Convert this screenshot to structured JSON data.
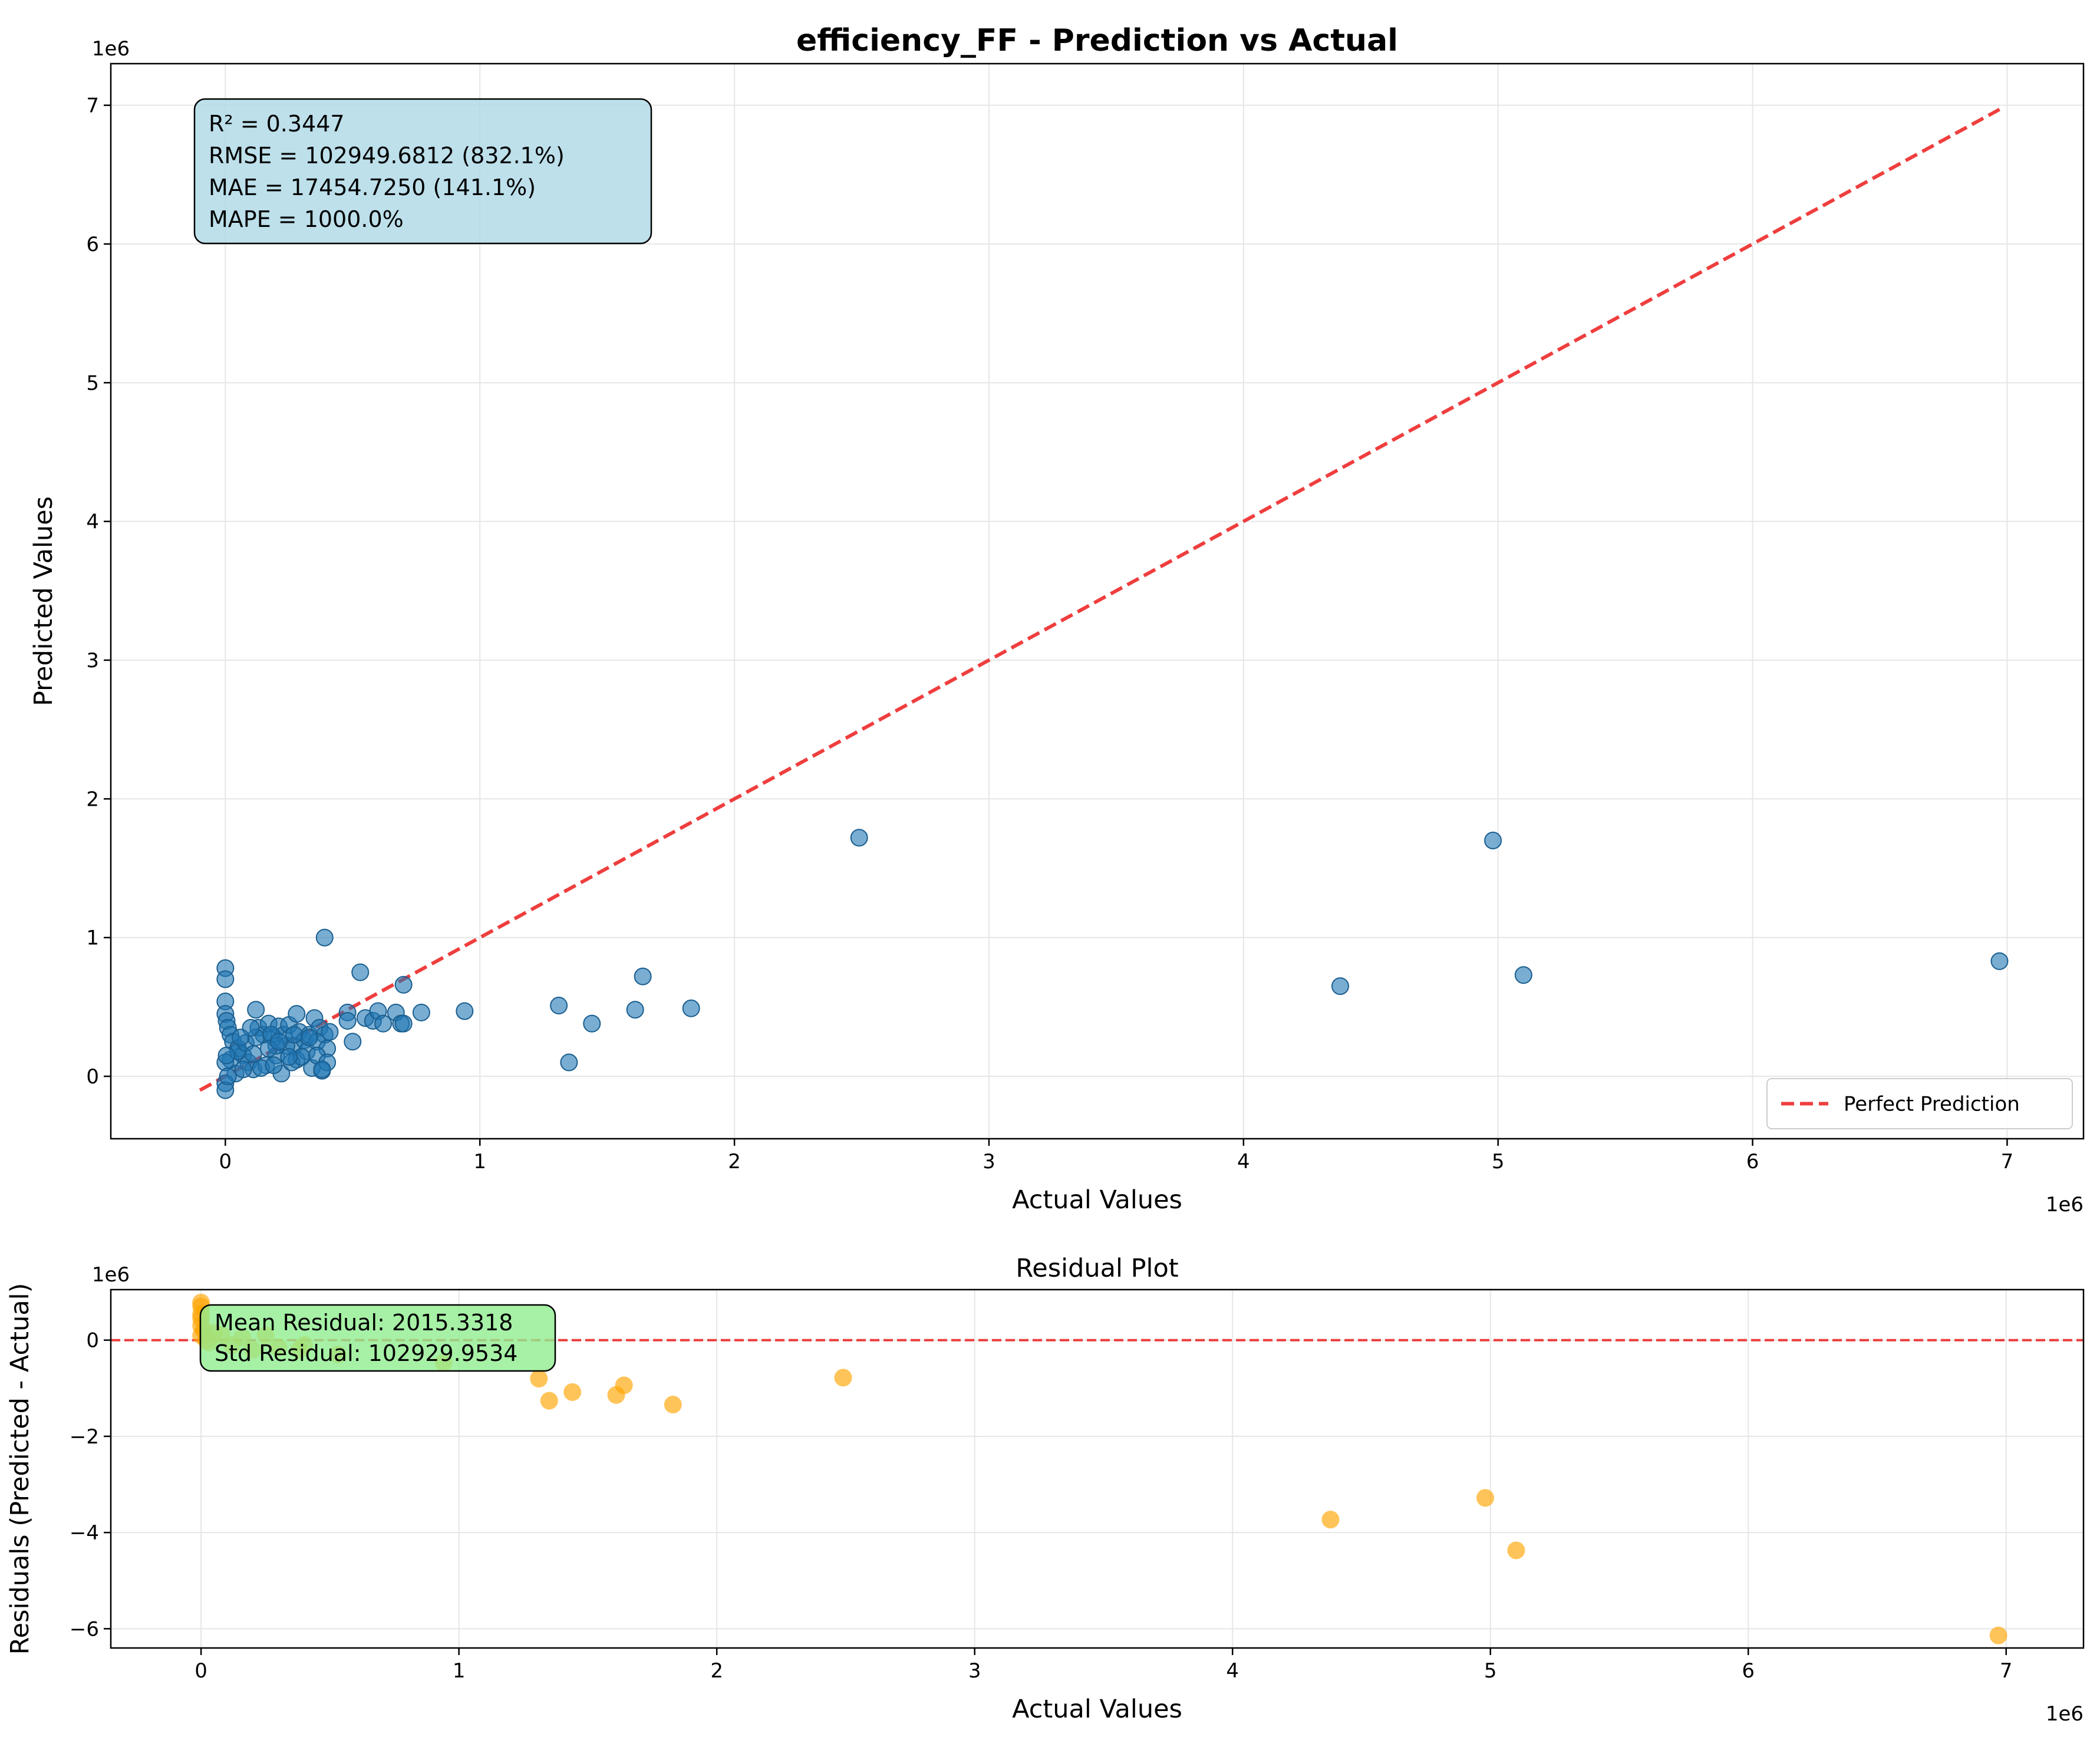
{
  "chart_data": [
    {
      "type": "scatter",
      "title": "efficiency_FF - Prediction vs Actual",
      "xlabel": "Actual Values",
      "ylabel": "Predicted Values",
      "x_offset_label": "1e6",
      "y_offset_label": "1e6",
      "xlim": [
        -0.45,
        7.3
      ],
      "ylim": [
        -0.45,
        7.3
      ],
      "xticks": [
        "0",
        "1",
        "2",
        "3",
        "4",
        "5",
        "6",
        "7"
      ],
      "yticks": [
        "0",
        "1",
        "2",
        "3",
        "4",
        "5",
        "6",
        "7"
      ],
      "grid": true,
      "legend": {
        "placement": "lower-right",
        "entries": [
          "Perfect Prediction"
        ]
      },
      "reference_line": {
        "name": "Perfect Prediction",
        "from": [
          -0.1,
          -0.1
        ],
        "to": [
          6.97,
          6.97
        ],
        "color": "#ee2a2a",
        "style": "dashed"
      },
      "stats_box": [
        "R² = 0.3447",
        "RMSE = 102949.6812 (832.1%)",
        "MAE = 17454.7250 (141.1%)",
        "MAPE = 1000.0%"
      ],
      "stats_box_color": "#add8e6",
      "point_color": "#1f77b4",
      "series": [
        {
          "x": [
            0,
            0,
            0,
            0,
            0.005,
            0.01,
            0.02,
            0.03,
            0.05,
            0.07,
            0.09,
            0.11,
            0.13,
            0.15,
            0.17,
            0.19,
            0.21,
            0.23,
            0.25,
            0.27,
            0.29,
            0.31,
            0.33,
            0.35,
            0.37,
            0.39,
            0.41,
            0.02,
            0.05,
            0.08,
            0.12,
            0.16,
            0.2,
            0.24,
            0.28,
            0.32,
            0.36,
            0.4,
            0.04,
            0.1,
            0.14,
            0.18,
            0.22,
            0.26,
            0.3,
            0.34,
            0.38,
            0.06,
            0.12,
            0.2,
            0.28,
            0.36,
            0.07,
            0.17,
            0.25,
            0.33,
            0.4,
            0.11,
            0.19,
            0.27,
            0.21,
            0.38,
            0,
            0.39,
            0.53,
            0.7,
            0.48,
            0.5,
            0.55,
            0.58,
            0.6,
            0.62,
            0.67,
            0.69,
            0.7,
            0.77,
            0.94,
            0.48,
            1.31,
            1.35,
            1.44,
            1.61,
            1.64,
            1.83,
            2.49,
            4.38,
            4.98,
            5.1,
            6.97,
            0,
            0,
            0.01,
            0.005
          ],
          "y": [
            0.78,
            0.7,
            0.54,
            0.45,
            0.4,
            0.35,
            0.3,
            0.25,
            0.2,
            0.15,
            0.1,
            0.05,
            0.35,
            0.3,
            0.38,
            0.28,
            0.36,
            0.3,
            0.37,
            0.22,
            0.32,
            0.26,
            0.3,
            0.42,
            0.35,
            0.3,
            0.32,
            0.12,
            0.18,
            0.24,
            0.28,
            0.08,
            0.15,
            0.22,
            0.12,
            0.18,
            0.25,
            0.2,
            0.02,
            0.35,
            0.06,
            0.3,
            0.02,
            0.1,
            0.14,
            0.06,
            0.04,
            0.28,
            0.48,
            0.22,
            0.45,
            0.15,
            0.05,
            0.2,
            0.14,
            0.28,
            0.1,
            0.16,
            0.08,
            0.3,
            0.25,
            0.05,
            0.1,
            1.0,
            0.75,
            0.66,
            0.46,
            0.25,
            0.42,
            0.4,
            0.47,
            0.38,
            0.46,
            0.38,
            0.38,
            0.46,
            0.47,
            0.4,
            0.51,
            0.1,
            0.38,
            0.48,
            0.72,
            0.49,
            1.72,
            0.65,
            1.7,
            0.73,
            0.83,
            -0.05,
            -0.1,
            0.0,
            0.15
          ]
        }
      ]
    },
    {
      "type": "scatter",
      "title": "Residual Plot",
      "xlabel": "Actual Values",
      "ylabel": "Residuals (Predicted - Actual)",
      "x_offset_label": "1e6",
      "y_offset_label": "1e6",
      "xlim": [
        -0.35,
        7.3
      ],
      "ylim": [
        -6.4,
        1.05
      ],
      "xticks": [
        "0",
        "1",
        "2",
        "3",
        "4",
        "5",
        "6",
        "7"
      ],
      "yticks": [
        "−6",
        "−4",
        "−2",
        "0"
      ],
      "ytick_values": [
        -6,
        -4,
        -2,
        0
      ],
      "grid": true,
      "reference_line": {
        "y": 0,
        "color": "#ee2a2a",
        "style": "dashed"
      },
      "stats_box": [
        "Mean Residual: 2015.3318",
        "Std Residual: 102929.9534"
      ],
      "stats_box_color": "#90ee90",
      "point_color": "#ffa500",
      "series": [
        {
          "x": [
            0,
            0,
            0,
            0,
            0,
            0,
            0.01,
            0.02,
            0.03,
            0.05,
            0.08,
            0.12,
            0.16,
            0.2,
            0.25,
            0.3,
            0.38,
            0.4,
            0.53,
            0.94,
            1.31,
            1.35,
            1.44,
            1.61,
            1.64,
            1.83,
            2.49,
            4.38,
            4.98,
            5.1,
            6.97
          ],
          "y": [
            0.78,
            0.7,
            0.54,
            0.45,
            0.3,
            0.1,
            0.2,
            0.0,
            -0.05,
            0.15,
            0.1,
            -0.1,
            0.05,
            -0.2,
            0.1,
            -0.15,
            -0.2,
            -0.1,
            -0.3,
            -0.47,
            -0.8,
            -1.26,
            -1.08,
            -1.14,
            -0.94,
            -1.34,
            -0.78,
            -3.73,
            -3.28,
            -4.37,
            -6.14
          ]
        }
      ]
    }
  ]
}
